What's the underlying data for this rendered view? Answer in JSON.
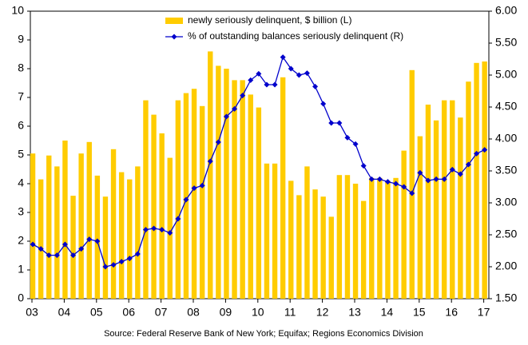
{
  "chart_data": {
    "type": "bar",
    "categories": [
      "03",
      null,
      null,
      null,
      "04",
      null,
      null,
      null,
      "05",
      null,
      null,
      null,
      "06",
      null,
      null,
      null,
      "07",
      null,
      null,
      null,
      "08",
      null,
      null,
      null,
      "09",
      null,
      null,
      null,
      "10",
      null,
      null,
      null,
      "11",
      null,
      null,
      null,
      "12",
      null,
      null,
      null,
      "13",
      null,
      null,
      null,
      "14",
      null,
      null,
      null,
      "15",
      null,
      null,
      null,
      "16",
      null,
      null,
      null,
      "17"
    ],
    "series": [
      {
        "name": "newly seriously delinquent, $ billion (L)",
        "color": "#FFCC00",
        "values": [
          5.05,
          4.15,
          4.98,
          4.6,
          5.5,
          3.58,
          5.05,
          5.45,
          4.28,
          3.55,
          5.2,
          4.4,
          4.15,
          4.6,
          6.9,
          6.4,
          5.75,
          4.9,
          6.9,
          7.15,
          7.3,
          6.7,
          8.6,
          8.1,
          8.0,
          7.6,
          7.6,
          7.1,
          6.65,
          4.7,
          4.7,
          7.7,
          4.1,
          3.6,
          4.6,
          3.8,
          3.55,
          2.85,
          4.3,
          4.3,
          4.0,
          3.4,
          4.2,
          4.2,
          4.1,
          4.2,
          5.15,
          7.95,
          5.65,
          6.75,
          6.2,
          6.9,
          6.9,
          6.3,
          7.55,
          8.2,
          8.25
        ]
      },
      {
        "name": "% of outstanding balances seriously delinquent (R)",
        "color": "#0000CC",
        "type": "line",
        "axis": "y2",
        "values": [
          2.35,
          2.28,
          2.18,
          2.18,
          2.35,
          2.18,
          2.28,
          2.43,
          2.4,
          2.0,
          2.03,
          2.08,
          2.13,
          2.2,
          2.58,
          2.6,
          2.58,
          2.53,
          2.75,
          3.05,
          3.23,
          3.27,
          3.65,
          3.95,
          4.35,
          4.47,
          4.68,
          4.92,
          5.02,
          4.85,
          4.85,
          5.28,
          5.1,
          5.0,
          5.03,
          4.82,
          4.55,
          4.25,
          4.25,
          4.02,
          3.92,
          3.58,
          3.37,
          3.37,
          3.33,
          3.3,
          3.25,
          3.15,
          3.47,
          3.35,
          3.37,
          3.37,
          3.52,
          3.45,
          3.6,
          3.77,
          3.83
        ]
      }
    ],
    "ylim": [
      0,
      10
    ],
    "yticks": [
      0,
      1,
      2,
      3,
      4,
      5,
      6,
      7,
      8,
      9,
      10
    ],
    "y2lim": [
      1.5,
      6
    ],
    "y2ticks": [
      {
        "value": 1.5,
        "label": "1.50"
      },
      {
        "value": 2,
        "label": "2.00"
      },
      {
        "value": 2.5,
        "label": "2.50"
      },
      {
        "value": 3,
        "label": "3.00"
      },
      {
        "value": 3.5,
        "label": "3.50"
      },
      {
        "value": 4,
        "label": "4.00"
      },
      {
        "value": 4.5,
        "label": "4.50"
      },
      {
        "value": 5,
        "label": "5.00"
      },
      {
        "value": 5.5,
        "label": "5.50"
      },
      {
        "value": 6,
        "label": "6.00"
      }
    ],
    "annotation": "Source: Federal Reserve Bank of New York; Equifax; Regions Economics Division",
    "legend": "top"
  }
}
